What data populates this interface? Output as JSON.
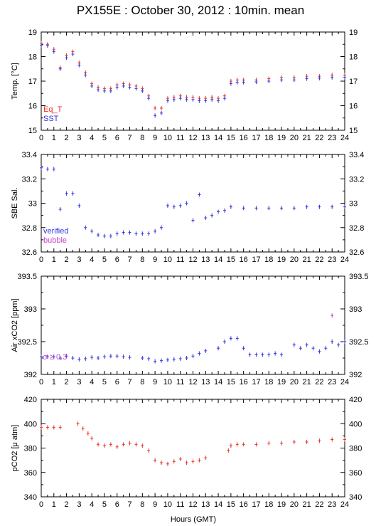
{
  "title": "PX155E : October 30, 2012 : 10min. mean",
  "xlabel": "Hours (GMT)",
  "x_ticks": [
    "0",
    "1",
    "2",
    "3",
    "4",
    "5",
    "6",
    "7",
    "8",
    "9",
    "10",
    "11",
    "12",
    "13",
    "14",
    "15",
    "16",
    "17",
    "18",
    "19",
    "20",
    "21",
    "22",
    "23",
    "24"
  ],
  "colors": {
    "red": "#e8332a",
    "blue": "#3333dd",
    "magenta": "#cc44cc",
    "axis": "#000000"
  },
  "chart_data": [
    {
      "type": "line",
      "ylabel": "Temp. [°C]",
      "xlim": [
        0,
        24
      ],
      "ylim": [
        15,
        19
      ],
      "y_ticks": [
        "15",
        "16",
        "17",
        "18",
        "19"
      ],
      "y_tick_values": [
        15,
        16,
        17,
        18,
        19
      ],
      "legend": [
        "Eq_T",
        "SST"
      ],
      "legend_placement": "bottom-left",
      "series": [
        {
          "name": "Eq_T",
          "color": "#e8332a",
          "x": [
            0,
            0.5,
            1,
            1.5,
            2,
            2.5,
            3,
            3.5,
            4,
            4.5,
            5,
            5.5,
            6,
            6.5,
            7,
            7.5,
            8,
            8.5,
            9,
            9.5,
            10,
            10.5,
            11,
            11.5,
            12,
            12.5,
            13,
            13.5,
            14,
            14.5,
            15,
            15.5,
            16,
            17,
            18,
            19,
            20,
            21,
            22,
            23,
            24
          ],
          "y": [
            18.55,
            18.5,
            18.3,
            17.55,
            18.05,
            18.2,
            17.75,
            17.35,
            16.9,
            16.75,
            16.7,
            16.7,
            16.85,
            16.9,
            16.85,
            16.8,
            16.7,
            16.4,
            15.9,
            15.9,
            16.3,
            16.35,
            16.4,
            16.35,
            16.35,
            16.3,
            16.3,
            16.35,
            16.3,
            16.4,
            17.0,
            17.05,
            17.05,
            17.05,
            17.1,
            17.15,
            17.15,
            17.2,
            17.2,
            17.25,
            17.25
          ]
        },
        {
          "name": "SST",
          "color": "#3333dd",
          "x": [
            0,
            0.5,
            1,
            1.5,
            2,
            2.5,
            3,
            3.5,
            4,
            4.5,
            5,
            5.5,
            6,
            6.5,
            7,
            7.5,
            8,
            8.5,
            9,
            9.5,
            10,
            10.5,
            11,
            11.5,
            12,
            12.5,
            13,
            13.5,
            14,
            14.5,
            15,
            15.5,
            16,
            17,
            18,
            19,
            20,
            21,
            22,
            23,
            24
          ],
          "y": [
            18.45,
            18.45,
            18.2,
            17.5,
            17.95,
            18.1,
            17.65,
            17.25,
            16.8,
            16.65,
            16.6,
            16.6,
            16.75,
            16.8,
            16.75,
            16.7,
            16.6,
            16.3,
            15.6,
            15.7,
            16.2,
            16.25,
            16.3,
            16.25,
            16.25,
            16.2,
            16.2,
            16.25,
            16.2,
            16.3,
            16.9,
            16.95,
            16.95,
            16.97,
            17.0,
            17.05,
            17.05,
            17.1,
            17.12,
            17.15,
            17.15
          ]
        }
      ]
    },
    {
      "type": "line",
      "ylabel": "SBE Sal.",
      "xlim": [
        0,
        24
      ],
      "ylim": [
        32.6,
        33.4
      ],
      "y_ticks": [
        "32.6",
        "32.8",
        "33",
        "33.2",
        "33.4"
      ],
      "y_tick_values": [
        32.6,
        32.8,
        33.0,
        33.2,
        33.4
      ],
      "legend": [
        "verified",
        "bubble"
      ],
      "legend_placement": "bottom-left",
      "series": [
        {
          "name": "verified",
          "color": "#3333dd",
          "x": [
            0,
            0.5,
            1,
            1.5,
            2,
            2.5,
            3,
            3.5,
            4,
            4.5,
            5,
            5.5,
            6,
            6.5,
            7,
            7.5,
            8,
            8.5,
            9,
            9.5,
            10,
            10.5,
            11,
            11.5,
            12,
            12.5,
            13,
            13.5,
            14,
            14.5,
            15,
            16,
            17,
            18,
            19,
            20,
            21,
            22,
            23,
            24
          ],
          "y": [
            33.29,
            33.28,
            33.28,
            32.95,
            33.08,
            33.08,
            32.98,
            32.8,
            32.77,
            32.74,
            32.73,
            32.73,
            32.75,
            32.76,
            32.76,
            32.75,
            32.75,
            32.75,
            32.77,
            32.8,
            32.98,
            32.97,
            32.98,
            33.0,
            32.86,
            33.07,
            32.88,
            32.9,
            32.93,
            32.94,
            32.97,
            32.96,
            32.96,
            32.96,
            32.96,
            32.96,
            32.97,
            32.97,
            32.97,
            32.97
          ]
        }
      ]
    },
    {
      "type": "line",
      "ylabel": "Air xCO2 [ppm]",
      "xlim": [
        0,
        24
      ],
      "ylim": [
        392,
        393.5
      ],
      "y_ticks": [
        "392",
        "392.5",
        "393",
        "393.5"
      ],
      "y_tick_values": [
        392,
        392.5,
        393,
        393.5
      ],
      "annotation": "σ ≥ 0.3",
      "series": [
        {
          "name": "",
          "color": "#3333dd",
          "x": [
            0,
            0.5,
            1,
            1.5,
            2,
            2.5,
            3,
            3.5,
            4,
            4.5,
            5,
            5.5,
            6,
            6.5,
            7,
            8,
            8.5,
            9,
            9.5,
            10,
            10.5,
            11,
            11.5,
            12,
            12.5,
            13,
            14,
            14.5,
            15,
            15.5,
            16,
            16.5,
            17,
            17.5,
            18,
            18.5,
            19,
            20,
            20.5,
            21,
            21.5,
            22,
            22.5,
            23,
            23.5,
            24
          ],
          "y": [
            392.27,
            392.27,
            392.27,
            392.25,
            392.28,
            392.25,
            392.23,
            392.24,
            392.26,
            392.25,
            392.27,
            392.28,
            392.28,
            392.27,
            392.26,
            392.25,
            392.24,
            392.2,
            392.21,
            392.22,
            392.23,
            392.24,
            392.25,
            392.28,
            392.32,
            392.36,
            392.4,
            392.5,
            392.55,
            392.55,
            392.4,
            392.3,
            392.3,
            392.3,
            392.3,
            392.32,
            392.3,
            392.45,
            392.4,
            392.45,
            392.4,
            392.35,
            392.4,
            392.5,
            392.45,
            392.5
          ]
        },
        {
          "name": "",
          "color": "#cc44cc",
          "x": [
            23.0
          ],
          "y": [
            392.9
          ]
        }
      ]
    },
    {
      "type": "line",
      "ylabel": "pCO2 [μ atm]",
      "xlim": [
        0,
        24
      ],
      "ylim": [
        340,
        420
      ],
      "y_ticks": [
        "340",
        "360",
        "380",
        "400",
        "420"
      ],
      "y_tick_values": [
        340,
        360,
        380,
        400,
        420
      ],
      "series": [
        {
          "name": "",
          "color": "#e8332a",
          "x": [
            0,
            0.5,
            1,
            1.5,
            2.9,
            3.3,
            3.7,
            4,
            4.5,
            5,
            5.5,
            6,
            6.5,
            7,
            7.5,
            8,
            8.5,
            9,
            9.5,
            10,
            10.5,
            11,
            11.5,
            12,
            12.5,
            13,
            14.8,
            15,
            15.5,
            16,
            17,
            18,
            19,
            20,
            21,
            22,
            23,
            24
          ],
          "y": [
            397,
            397,
            397,
            397,
            400,
            396,
            392,
            388,
            383,
            382,
            383,
            381,
            383,
            384,
            383,
            382,
            378,
            370,
            368,
            367,
            369,
            371,
            368,
            369,
            370,
            372,
            378,
            382,
            383,
            383,
            383,
            384,
            384,
            385,
            385,
            386,
            387,
            387
          ]
        }
      ]
    }
  ]
}
